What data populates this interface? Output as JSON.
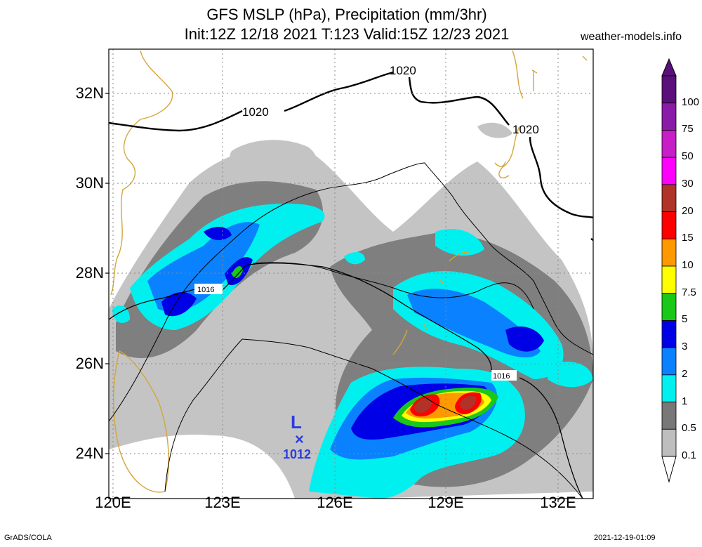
{
  "title_line1": "GFS MSLP (hPa), Precipitation (mm/3hr)",
  "title_line2": "Init:12Z 12/18 2021 T:123 Valid:15Z 12/23 2021",
  "site": "weather-models.info",
  "footer_left": "GrADS/COLA",
  "footer_right": "2021-12-19-01:09",
  "lat_labels": [
    "32N",
    "30N",
    "28N",
    "26N",
    "24N"
  ],
  "lon_labels": [
    "120E",
    "123E",
    "126E",
    "129E",
    "132E"
  ],
  "colorbar": {
    "labels": [
      "100",
      "75",
      "50",
      "30",
      "20",
      "15",
      "10",
      "7.5",
      "5",
      "3",
      "2",
      "1",
      "0.5",
      "0.1"
    ],
    "colors": [
      "#5a0f7a",
      "#8c1aa8",
      "#c81ec8",
      "#ff00ff",
      "#b03228",
      "#ff0000",
      "#ff9900",
      "#ffff00",
      "#19c819",
      "#0000e6",
      "#0a82ff",
      "#00f0f0",
      "#787878",
      "#bebebe"
    ]
  },
  "isobars": [
    {
      "label": "1020"
    },
    {
      "label": "1020"
    },
    {
      "label": "1020"
    },
    {
      "label": "1016"
    },
    {
      "label": "1016"
    }
  ],
  "low_center": {
    "symbol": "L",
    "marker": "×",
    "pressure": "1012"
  }
}
